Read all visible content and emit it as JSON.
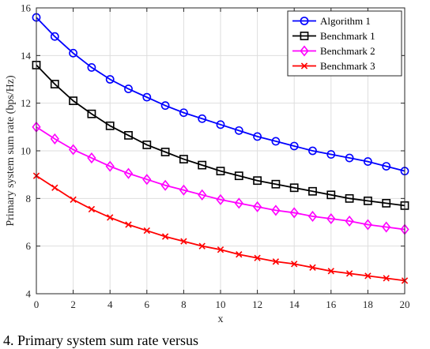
{
  "chart_data": {
    "type": "line",
    "xlabel": "x",
    "ylabel": "Primary system sum rate (bps/Hz)",
    "xlim": [
      0,
      20
    ],
    "ylim": [
      4,
      16
    ],
    "xticks": [
      0,
      2,
      4,
      6,
      8,
      10,
      12,
      14,
      16,
      18,
      20
    ],
    "yticks": [
      4,
      6,
      8,
      10,
      12,
      14,
      16
    ],
    "grid": true,
    "legend_position": "top-right",
    "x": [
      0,
      1,
      2,
      3,
      4,
      5,
      6,
      7,
      8,
      9,
      10,
      11,
      12,
      13,
      14,
      15,
      16,
      17,
      18,
      19,
      20
    ],
    "series": [
      {
        "name": "Algorithm 1",
        "color": "#0000ff",
        "marker": "circle",
        "values": [
          15.6,
          14.8,
          14.1,
          13.5,
          13.0,
          12.6,
          12.25,
          11.9,
          11.6,
          11.35,
          11.1,
          10.85,
          10.6,
          10.4,
          10.2,
          10.0,
          9.85,
          9.7,
          9.55,
          9.35,
          9.15
        ]
      },
      {
        "name": "Benchmark 1",
        "color": "#000000",
        "marker": "square",
        "values": [
          13.6,
          12.8,
          12.1,
          11.55,
          11.05,
          10.65,
          10.25,
          9.95,
          9.65,
          9.4,
          9.15,
          8.95,
          8.75,
          8.6,
          8.45,
          8.3,
          8.15,
          8.0,
          7.9,
          7.8,
          7.7
        ]
      },
      {
        "name": "Benchmark 2",
        "color": "#ff00ff",
        "marker": "diamond",
        "values": [
          11.0,
          10.5,
          10.05,
          9.7,
          9.35,
          9.05,
          8.8,
          8.55,
          8.35,
          8.15,
          7.95,
          7.8,
          7.65,
          7.5,
          7.4,
          7.25,
          7.15,
          7.05,
          6.9,
          6.8,
          6.7
        ]
      },
      {
        "name": "Benchmark 3",
        "color": "#ff0000",
        "marker": "x",
        "values": [
          8.95,
          8.45,
          7.95,
          7.55,
          7.2,
          6.9,
          6.65,
          6.4,
          6.2,
          6.0,
          5.85,
          5.65,
          5.5,
          5.35,
          5.25,
          5.1,
          4.95,
          4.85,
          4.75,
          4.65,
          4.55
        ]
      }
    ]
  },
  "caption_fragment": "4. Primary system sum rate versus"
}
